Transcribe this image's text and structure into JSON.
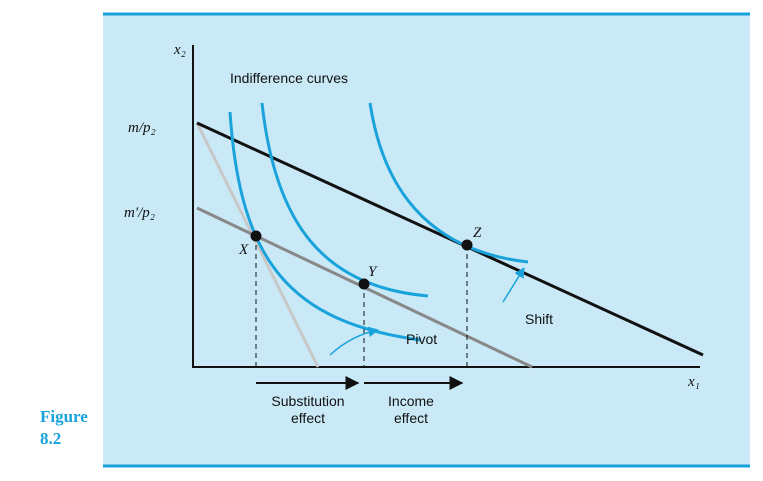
{
  "figure": {
    "label": "Figure",
    "number": "8.2"
  },
  "axes": {
    "y_label": "x₂",
    "x_label": "x₁",
    "y_intercept_high": "m/p₂",
    "y_intercept_low": "m′/p₂"
  },
  "curves_label": "Indifference curves",
  "points": {
    "x": "X",
    "y": "Y",
    "z": "Z"
  },
  "arrows": {
    "pivot": "Pivot",
    "shift": "Shift"
  },
  "effects": {
    "substitution": [
      "Substitution",
      "effect"
    ],
    "income": [
      "Income",
      "effect"
    ]
  }
}
